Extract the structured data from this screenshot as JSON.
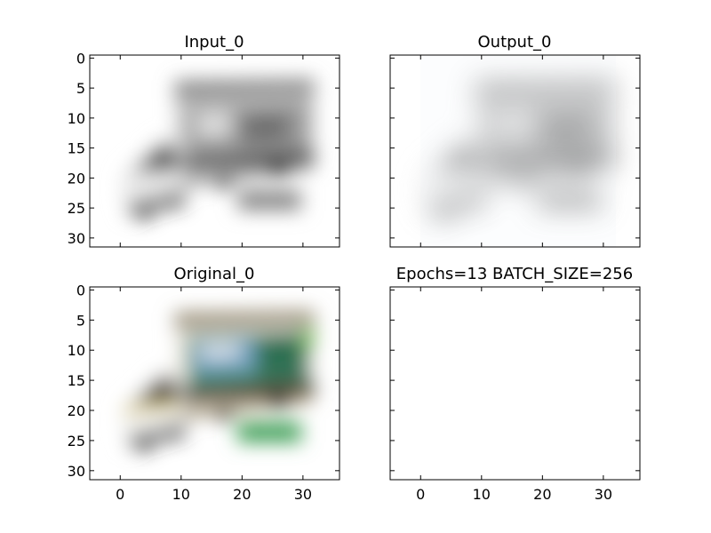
{
  "chart_data": [
    {
      "type": "image",
      "title": "Input_0",
      "xlim": [
        -5,
        36
      ],
      "ylim": [
        31.5,
        -0.5
      ],
      "x_ticks": [
        0,
        10,
        20,
        30
      ],
      "y_ticks": [
        0,
        5,
        10,
        15,
        20,
        25,
        30
      ],
      "x_tick_labels_shown": false,
      "y_tick_labels_shown": true,
      "image": "grayscale box truck with TRUCK sign",
      "image_extent": [
        -0.5,
        31.5,
        31.5,
        -0.5
      ],
      "grid": false
    },
    {
      "type": "image",
      "title": "Output_0",
      "xlim": [
        -5,
        36
      ],
      "ylim": [
        31.5,
        -0.5
      ],
      "x_ticks": [
        0,
        10,
        20,
        30
      ],
      "y_ticks": [
        0,
        5,
        10,
        15,
        20,
        25,
        30
      ],
      "x_tick_labels_shown": false,
      "y_tick_labels_shown": false,
      "image": "reconstructed faint box truck with TRUCK sign",
      "image_extent": [
        -0.5,
        31.5,
        31.5,
        -0.5
      ],
      "grid": false
    },
    {
      "type": "image",
      "title": "Original_0",
      "xlim": [
        -5,
        36
      ],
      "ylim": [
        31.5,
        -0.5
      ],
      "x_ticks": [
        0,
        10,
        20,
        30
      ],
      "y_ticks": [
        0,
        5,
        10,
        15,
        20,
        25,
        30
      ],
      "x_tick_labels_shown": true,
      "y_tick_labels_shown": true,
      "image": "color box truck with green TRUCK sign",
      "image_extent": [
        -0.5,
        31.5,
        31.5,
        -0.5
      ],
      "grid": false
    },
    {
      "type": "image",
      "title": "Epochs=13 BATCH_SIZE=256",
      "xlim": [
        -5,
        36
      ],
      "ylim": [
        31.5,
        -0.5
      ],
      "x_ticks": [
        0,
        10,
        20,
        30
      ],
      "y_ticks": [
        0,
        5,
        10,
        15,
        20,
        25,
        30
      ],
      "x_tick_labels_shown": true,
      "y_tick_labels_shown": false,
      "image": null,
      "grid": false
    }
  ]
}
